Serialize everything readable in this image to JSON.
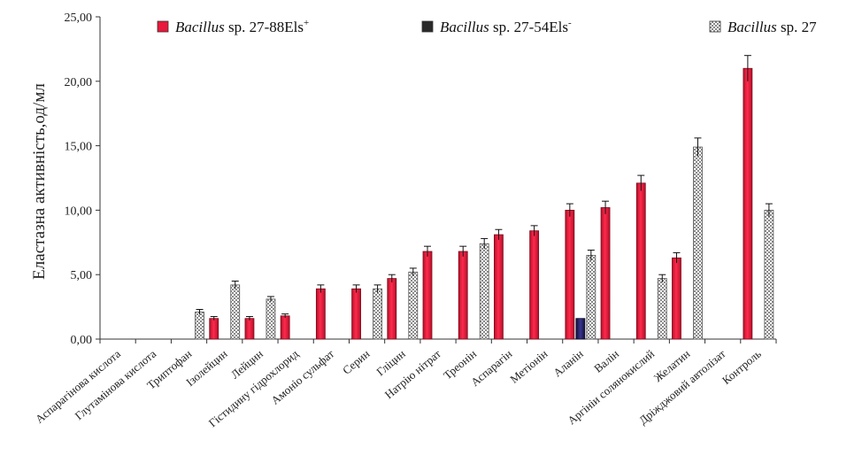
{
  "chart_data": {
    "type": "bar",
    "ylabel": "Еластазна активність,од/мл",
    "ylim": [
      0,
      25
    ],
    "yticks": [
      "0,00",
      "5,00",
      "10,00",
      "15,00",
      "20,00",
      "25,00"
    ],
    "categories": [
      "Аспарагінова кислота",
      "Глутамінова кислота",
      "Триптофан",
      "Ізолейцин",
      "Лейцин",
      "Гістидину гідрохлорид",
      "Амоніо сульфат",
      "Серин",
      "Гліцин",
      "Натрію нітрат",
      "Треонін",
      "Аспарагін",
      "Метіонін",
      "Аланін",
      "Валін",
      "Аргініи солянокислий",
      "Желатин",
      "Дріжджовий автолізат",
      "Контроль"
    ],
    "series": [
      {
        "name_italic": "Bacillus",
        "name_rest": " sp. 27-88Els",
        "name_sup": "+",
        "color": "#e8193c",
        "pattern": "solid",
        "values": [
          0,
          0,
          0,
          1.6,
          1.6,
          1.8,
          3.9,
          3.9,
          4.7,
          6.8,
          6.8,
          8.1,
          8.4,
          10.0,
          10.2,
          12.1,
          6.3,
          0,
          21.0
        ],
        "errors": [
          0,
          0,
          0,
          0.15,
          0.15,
          0.15,
          0.3,
          0.3,
          0.3,
          0.4,
          0.4,
          0.4,
          0.4,
          0.5,
          0.5,
          0.6,
          0.4,
          0,
          1.0
        ]
      },
      {
        "name_italic": "Bacillus",
        "name_rest": " sp. 27-54Els",
        "name_sup": "-",
        "color": "#1e1b4f",
        "pattern": "solid",
        "values": [
          0,
          0,
          0,
          0,
          0,
          0,
          0,
          0,
          0,
          0,
          0,
          0,
          0,
          1.6,
          0,
          0,
          0,
          0,
          0
        ],
        "errors": [
          0,
          0,
          0,
          0,
          0,
          0,
          0,
          0,
          0,
          0,
          0,
          0,
          0,
          0,
          0,
          0,
          0,
          0,
          0
        ]
      },
      {
        "name_italic": "Bacillus",
        "name_rest": " sp. 27",
        "name_sup": "",
        "color": "#9a9a9a",
        "pattern": "checker",
        "values": [
          0,
          0,
          2.1,
          4.2,
          3.1,
          0,
          0,
          3.9,
          5.2,
          0,
          7.4,
          0,
          0,
          6.5,
          0,
          4.7,
          14.9,
          0,
          10.0
        ],
        "errors": [
          0,
          0,
          0.2,
          0.3,
          0.2,
          0,
          0,
          0.3,
          0.3,
          0,
          0.4,
          0,
          0,
          0.4,
          0,
          0.3,
          0.7,
          0,
          0.5
        ]
      }
    ],
    "legend_position": "top"
  }
}
